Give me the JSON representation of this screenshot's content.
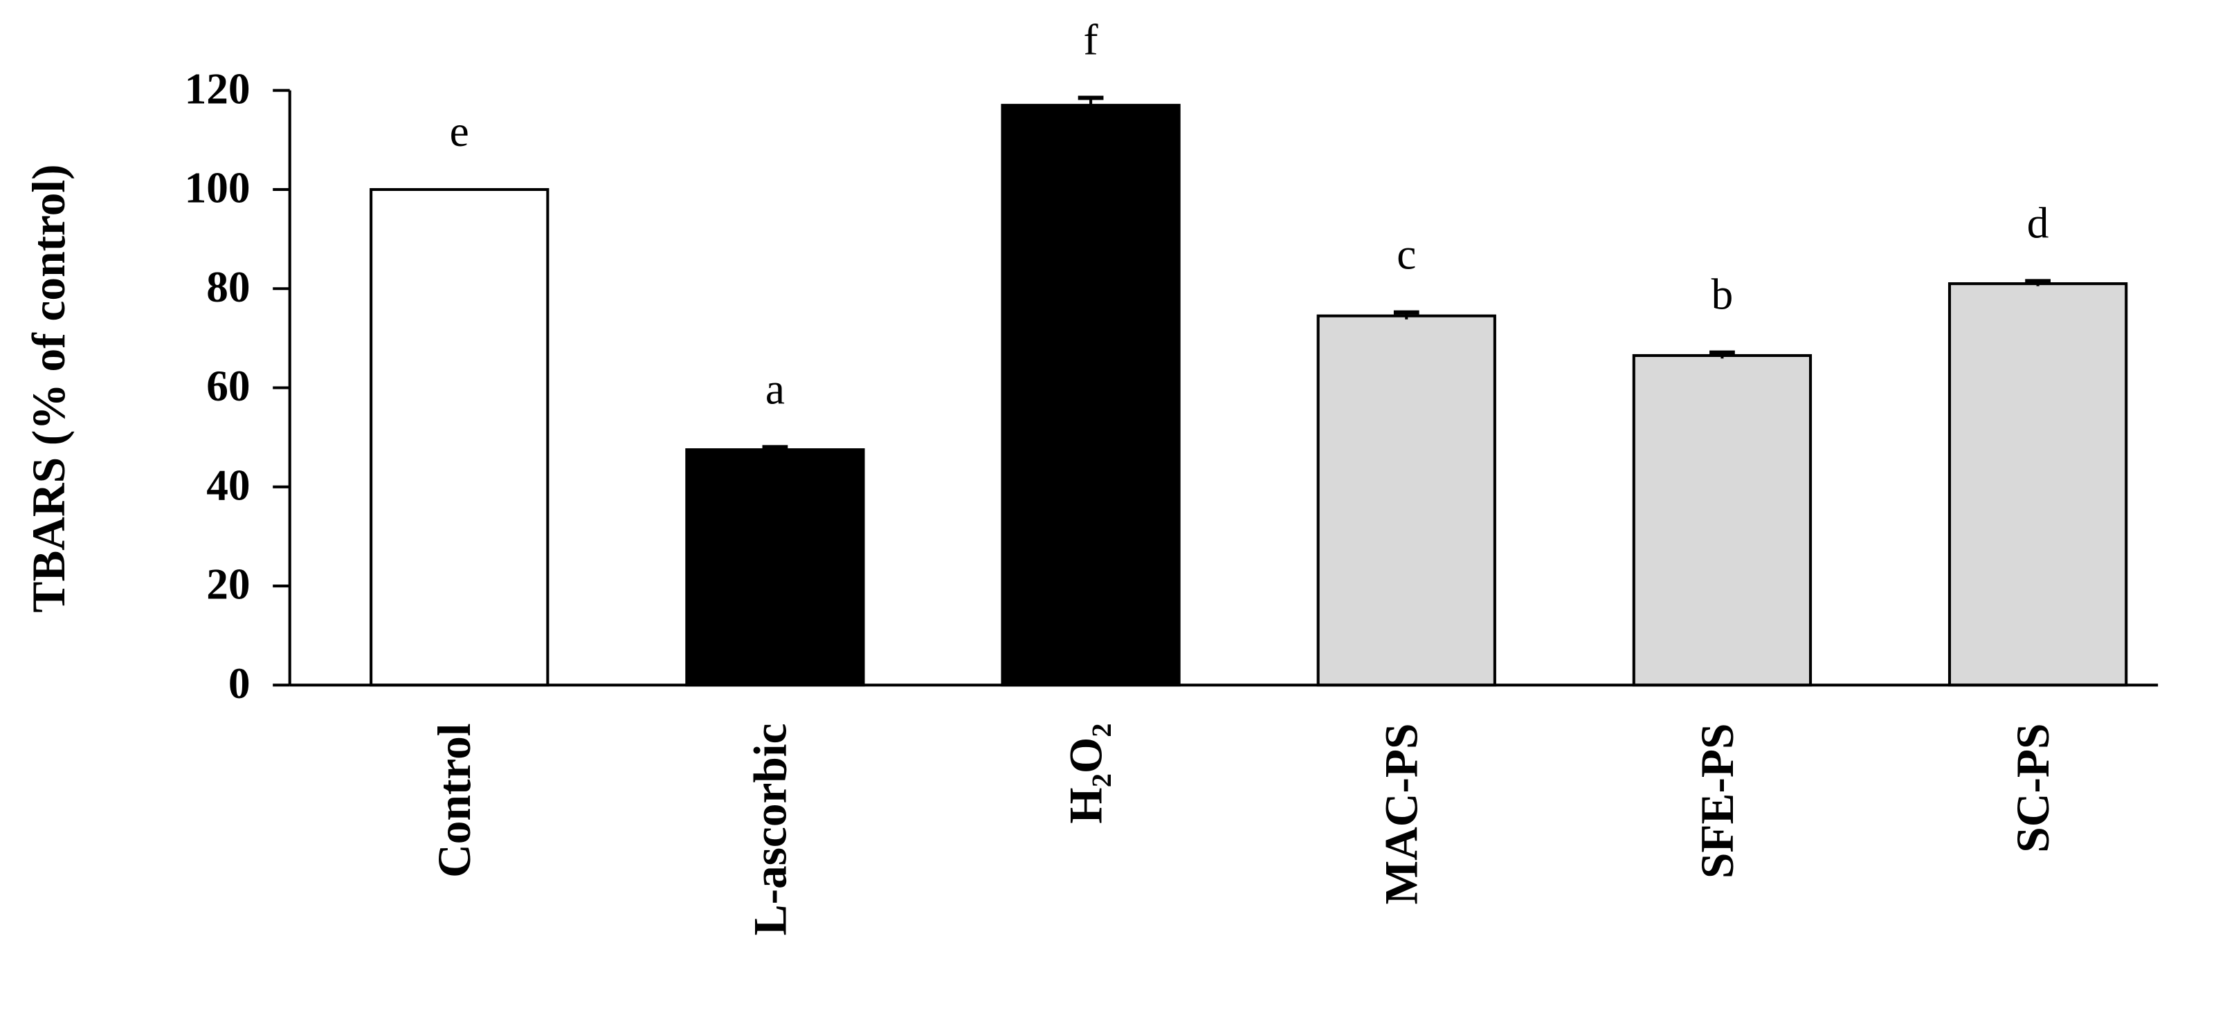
{
  "chart_data": {
    "type": "bar",
    "y_label": "TBARS (% of control)",
    "categories": [
      "Control",
      "L-ascorbic",
      "H₂O₂",
      "MAC-PS",
      "SFE-PS",
      "SC-PS"
    ],
    "values": [
      100,
      47.5,
      117,
      74.5,
      66.5,
      81
    ],
    "errors": [
      0,
      0.5,
      1.5,
      0.7,
      0.6,
      0.5
    ],
    "colors": [
      "#ffffff",
      "#000000",
      "#000000",
      "#d9d9d9",
      "#d9d9d9",
      "#d9d9d9"
    ],
    "significance_labels": [
      "e",
      "a",
      "f",
      "c",
      "b",
      "d"
    ],
    "ylim": [
      0,
      120
    ],
    "yticks": [
      0,
      20,
      40,
      60,
      80,
      100,
      120
    ],
    "grid": false
  }
}
